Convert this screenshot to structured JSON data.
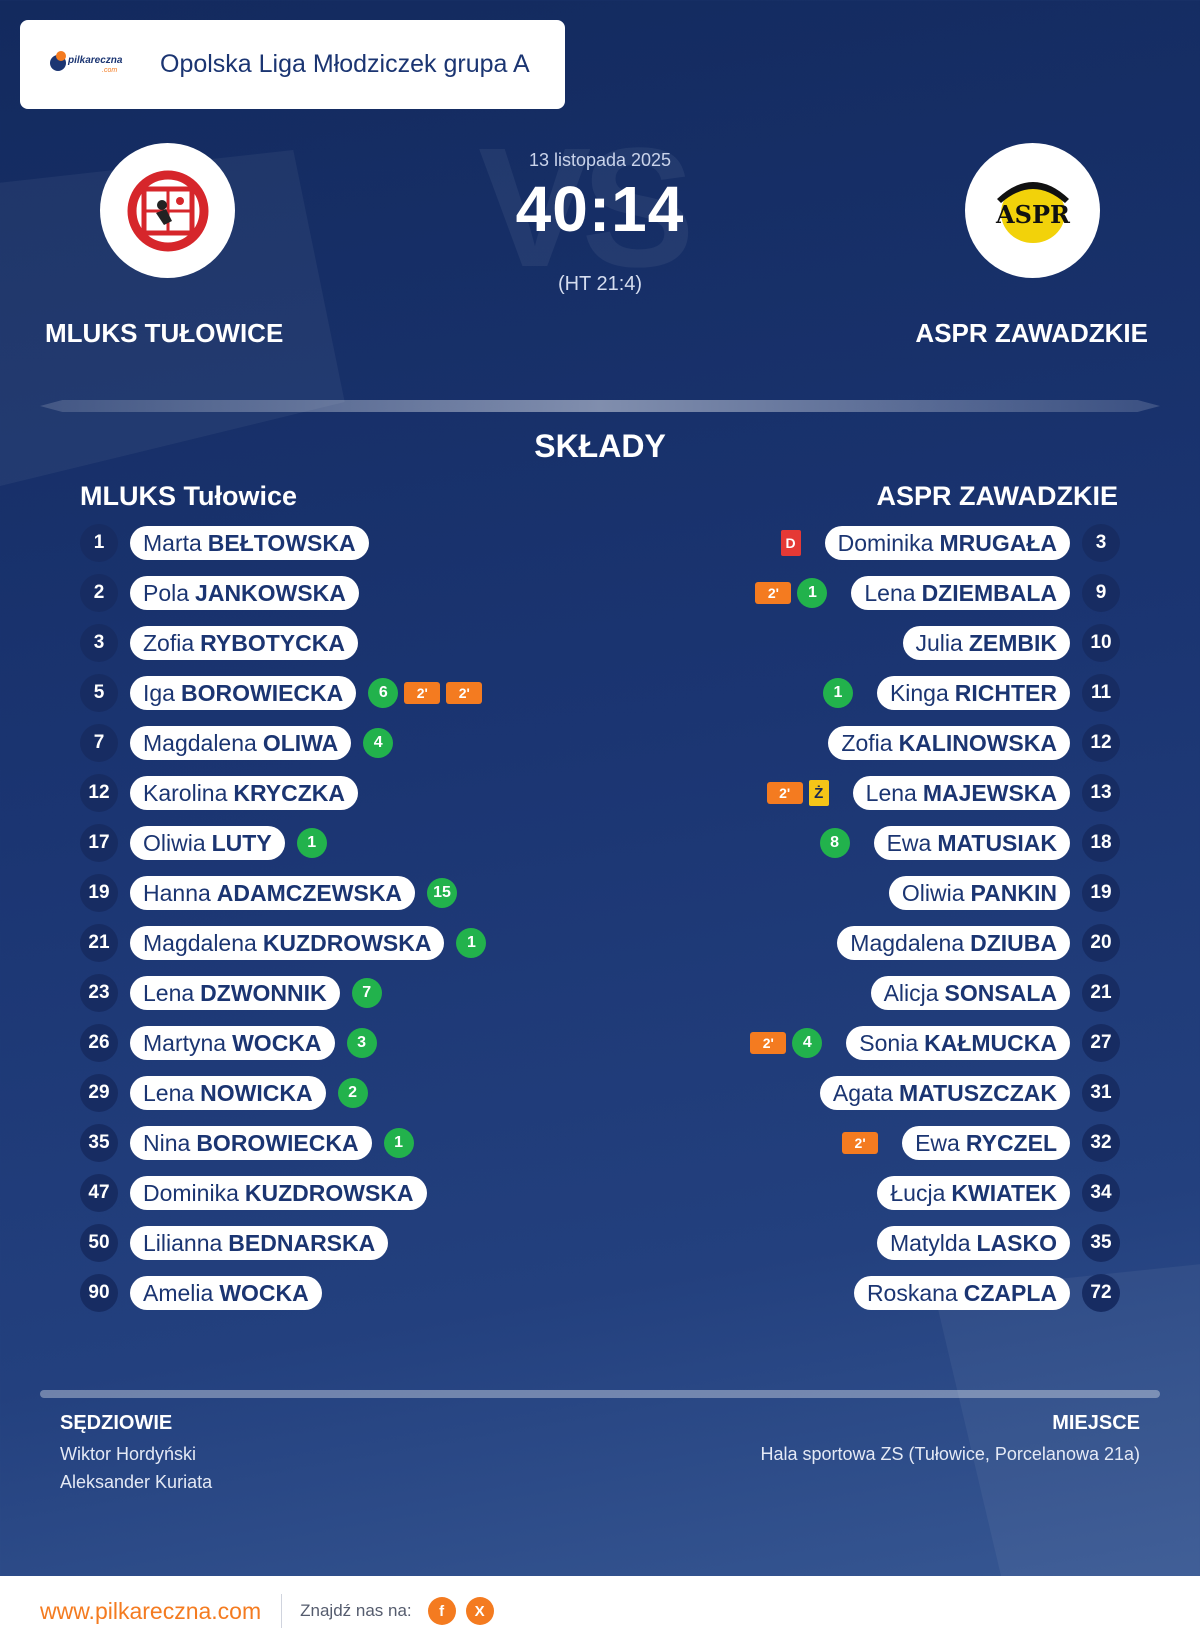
{
  "header": {
    "brand_text": "pilkareczna",
    "brand_sub": ".com",
    "league_title": "Opolska Liga Młodziczek grupa A"
  },
  "match": {
    "date": "13 listopada 2025",
    "score": "40:14",
    "halftime": "(HT 21:4)",
    "watermark": "VS"
  },
  "home_team": {
    "name": "MLUKS TUŁOWICE",
    "squad_title": "MLUKS Tułowice",
    "logo_icon": "mluks-crest-icon"
  },
  "away_team": {
    "name": "ASPR ZAWADZKIE",
    "squad_title": "ASPR ZAWADZKIE",
    "logo_icon": "aspr-crest-icon",
    "logo_text": "ASPR"
  },
  "section_title": "SKŁADY",
  "home_players": [
    {
      "number": "1",
      "first": "Marta",
      "last": "BEŁTOWSKA",
      "goals": "",
      "penalties": [],
      "yellow": "",
      "red": ""
    },
    {
      "number": "2",
      "first": "Pola",
      "last": "JANKOWSKA",
      "goals": "",
      "penalties": [],
      "yellow": "",
      "red": ""
    },
    {
      "number": "3",
      "first": "Zofia",
      "last": "RYBOTYCKA",
      "goals": "",
      "penalties": [],
      "yellow": "",
      "red": ""
    },
    {
      "number": "5",
      "first": "Iga",
      "last": "BOROWIECKA",
      "goals": "6",
      "penalties": [
        "2'",
        "2'"
      ],
      "yellow": "",
      "red": ""
    },
    {
      "number": "7",
      "first": "Magdalena",
      "last": "OLIWA",
      "goals": "4",
      "penalties": [],
      "yellow": "",
      "red": ""
    },
    {
      "number": "12",
      "first": "Karolina",
      "last": "KRYCZKA",
      "goals": "",
      "penalties": [],
      "yellow": "",
      "red": ""
    },
    {
      "number": "17",
      "first": "Oliwia",
      "last": "LUTY",
      "goals": "1",
      "penalties": [],
      "yellow": "",
      "red": ""
    },
    {
      "number": "19",
      "first": "Hanna",
      "last": "ADAMCZEWSKA",
      "goals": "15",
      "penalties": [],
      "yellow": "",
      "red": ""
    },
    {
      "number": "21",
      "first": "Magdalena",
      "last": "KUZDROWSKA",
      "goals": "1",
      "penalties": [],
      "yellow": "",
      "red": ""
    },
    {
      "number": "23",
      "first": "Lena",
      "last": "DZWONNIK",
      "goals": "7",
      "penalties": [],
      "yellow": "",
      "red": ""
    },
    {
      "number": "26",
      "first": "Martyna",
      "last": "WOCKA",
      "goals": "3",
      "penalties": [],
      "yellow": "",
      "red": ""
    },
    {
      "number": "29",
      "first": "Lena",
      "last": "NOWICKA",
      "goals": "2",
      "penalties": [],
      "yellow": "",
      "red": ""
    },
    {
      "number": "35",
      "first": "Nina",
      "last": "BOROWIECKA",
      "goals": "1",
      "penalties": [],
      "yellow": "",
      "red": ""
    },
    {
      "number": "47",
      "first": "Dominika",
      "last": "KUZDROWSKA",
      "goals": "",
      "penalties": [],
      "yellow": "",
      "red": ""
    },
    {
      "number": "50",
      "first": "Lilianna",
      "last": "BEDNARSKA",
      "goals": "",
      "penalties": [],
      "yellow": "",
      "red": ""
    },
    {
      "number": "90",
      "first": "Amelia",
      "last": "WOCKA",
      "goals": "",
      "penalties": [],
      "yellow": "",
      "red": ""
    }
  ],
  "away_players": [
    {
      "number": "3",
      "first": "Dominika",
      "last": "MRUGAŁA",
      "goals": "",
      "penalties": [],
      "yellow": "",
      "red": "D"
    },
    {
      "number": "9",
      "first": "Lena",
      "last": "DZIEMBALA",
      "goals": "1",
      "penalties": [
        "2'"
      ],
      "yellow": "",
      "red": ""
    },
    {
      "number": "10",
      "first": "Julia",
      "last": "ZEMBIK",
      "goals": "",
      "penalties": [],
      "yellow": "",
      "red": ""
    },
    {
      "number": "11",
      "first": "Kinga",
      "last": "RICHTER",
      "goals": "1",
      "penalties": [],
      "yellow": "",
      "red": ""
    },
    {
      "number": "12",
      "first": "Zofia",
      "last": "KALINOWSKA",
      "goals": "",
      "penalties": [],
      "yellow": "",
      "red": ""
    },
    {
      "number": "13",
      "first": "Lena",
      "last": "MAJEWSKA",
      "goals": "",
      "penalties": [
        "2'"
      ],
      "yellow": "Ż",
      "red": ""
    },
    {
      "number": "18",
      "first": "Ewa",
      "last": "MATUSIAK",
      "goals": "8",
      "penalties": [],
      "yellow": "",
      "red": ""
    },
    {
      "number": "19",
      "first": "Oliwia",
      "last": "PANKIN",
      "goals": "",
      "penalties": [],
      "yellow": "",
      "red": ""
    },
    {
      "number": "20",
      "first": "Magdalena",
      "last": "DZIUBA",
      "goals": "",
      "penalties": [],
      "yellow": "",
      "red": ""
    },
    {
      "number": "21",
      "first": "Alicja",
      "last": "SONSALA",
      "goals": "",
      "penalties": [],
      "yellow": "",
      "red": ""
    },
    {
      "number": "27",
      "first": "Sonia",
      "last": "KAŁMUCKA",
      "goals": "4",
      "penalties": [
        "2'"
      ],
      "yellow": "",
      "red": ""
    },
    {
      "number": "31",
      "first": "Agata",
      "last": "MATUSZCZAK",
      "goals": "",
      "penalties": [],
      "yellow": "",
      "red": ""
    },
    {
      "number": "32",
      "first": "Ewa",
      "last": "RYCZEL",
      "goals": "",
      "penalties": [
        "2'"
      ],
      "yellow": "",
      "red": ""
    },
    {
      "number": "34",
      "first": "Łucja",
      "last": "KWIATEK",
      "goals": "",
      "penalties": [],
      "yellow": "",
      "red": ""
    },
    {
      "number": "35",
      "first": "Matylda",
      "last": "LASKO",
      "goals": "",
      "penalties": [],
      "yellow": "",
      "red": ""
    },
    {
      "number": "72",
      "first": "Roskana",
      "last": "CZAPLA",
      "goals": "",
      "penalties": [],
      "yellow": "",
      "red": ""
    }
  ],
  "officials": {
    "label": "SĘDZIOWIE",
    "names": [
      "Wiktor Hordyński",
      "Aleksander Kuriata"
    ]
  },
  "venue": {
    "label": "MIEJSCE",
    "text": "Hala sportowa ZS (Tułowice, Porcelanowa 21a)"
  },
  "footer": {
    "site": "www.pilkareczna.com",
    "find_us": "Znajdź nas na:",
    "facebook": "f",
    "x": "X"
  },
  "colors": {
    "navy": "#1b3572",
    "accent": "#f47b20",
    "goal": "#22b24c",
    "yellow_card": "#f5c518",
    "red_card": "#e53935"
  }
}
